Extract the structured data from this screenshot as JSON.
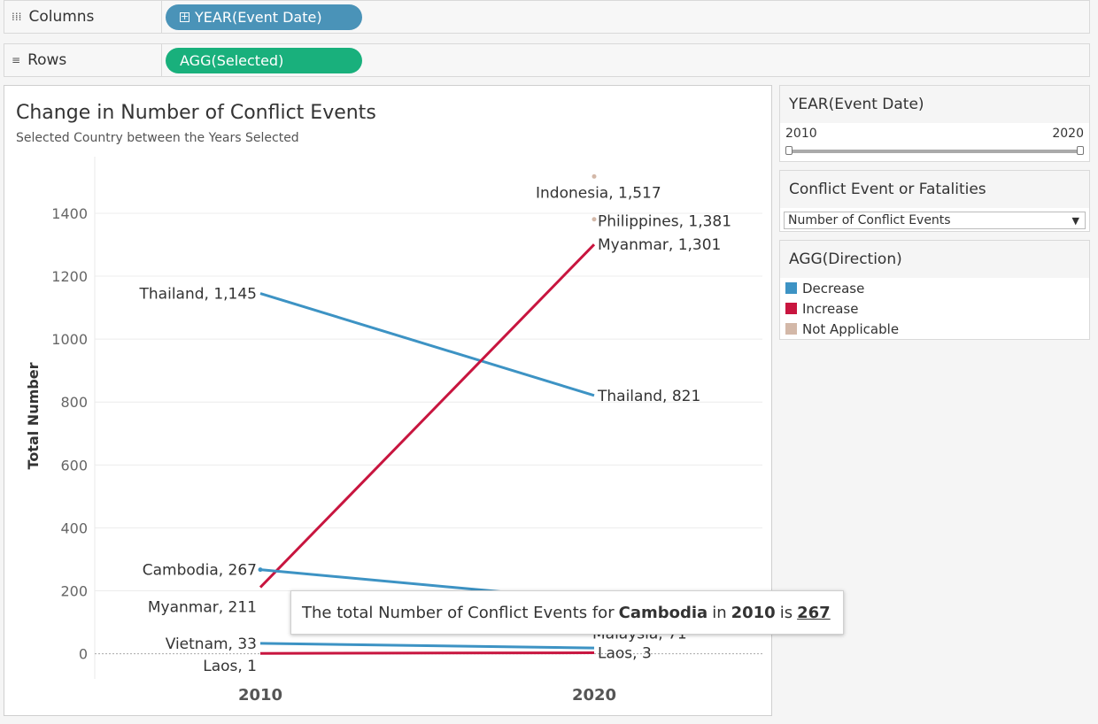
{
  "shelves": {
    "columns": {
      "label": "Columns",
      "icon": "columns-icon",
      "pill": "YEAR(Event Date)",
      "pill_icon": "plus-box-icon",
      "color": "#4a93b8"
    },
    "rows": {
      "label": "Rows",
      "icon": "rows-icon",
      "pill": "AGG(Selected)",
      "color": "#19b07c"
    }
  },
  "chart_data": {
    "type": "line",
    "title": "Change in Number of Conflict Events",
    "subtitle": "Selected Country between the Years Selected",
    "ylabel": "Total Number",
    "xlabel": "",
    "categories": [
      "2010",
      "2020"
    ],
    "ylim": [
      -80,
      1580
    ],
    "yticks": [
      0,
      200,
      400,
      600,
      800,
      1000,
      1200,
      1400
    ],
    "grid": true,
    "colors": {
      "Decrease": "#3d93c4",
      "Increase": "#c8153f",
      "Not Applicable": "#d3b8a8"
    },
    "series": [
      {
        "name": "Thailand",
        "direction": "Decrease",
        "values": [
          1145,
          821
        ],
        "labels": [
          "Thailand, 1,145",
          "Thailand, 821"
        ]
      },
      {
        "name": "Myanmar",
        "direction": "Increase",
        "values": [
          211,
          1301
        ],
        "labels": [
          "Myanmar, 211",
          "Myanmar, 1,301"
        ]
      },
      {
        "name": "Cambodia",
        "direction": "Decrease",
        "values": [
          267,
          170
        ],
        "labels": [
          "Cambodia, 267",
          ""
        ]
      },
      {
        "name": "Vietnam",
        "direction": "Decrease",
        "values": [
          33,
          18
        ],
        "labels": [
          "Vietnam, 33",
          ""
        ]
      },
      {
        "name": "Laos",
        "direction": "Increase",
        "values": [
          1,
          3
        ],
        "labels": [
          "Laos, 1",
          "Laos, 3"
        ]
      },
      {
        "name": "Malaysia",
        "direction": "Not Applicable",
        "values": [
          null,
          71
        ],
        "labels": [
          "",
          "Malaysia, 71"
        ]
      },
      {
        "name": "Indonesia",
        "direction": "Not Applicable",
        "values": [
          null,
          1517
        ],
        "labels": [
          "",
          "Indonesia, 1,517"
        ]
      },
      {
        "name": "Philippines",
        "direction": "Not Applicable",
        "values": [
          null,
          1381
        ],
        "labels": [
          "",
          "Philippines, 1,381"
        ]
      }
    ]
  },
  "tooltip": {
    "prefix": "The total Number of Conflict Events for",
    "country": "Cambodia",
    "mid": "in",
    "year": "2010",
    "is": "is",
    "value": "267"
  },
  "filters": {
    "year": {
      "title": "YEAR(Event Date)",
      "min": "2010",
      "max": "2020"
    },
    "measure": {
      "title": "Conflict Event or Fatalities",
      "selected": "Number of Conflict Events",
      "arrow_icon": "dropdown-arrow-icon"
    }
  },
  "legend": {
    "title": "AGG(Direction)",
    "items": [
      {
        "label": "Decrease",
        "color": "#3d93c4"
      },
      {
        "label": "Increase",
        "color": "#c8153f"
      },
      {
        "label": "Not Applicable",
        "color": "#d3b8a8"
      }
    ]
  }
}
